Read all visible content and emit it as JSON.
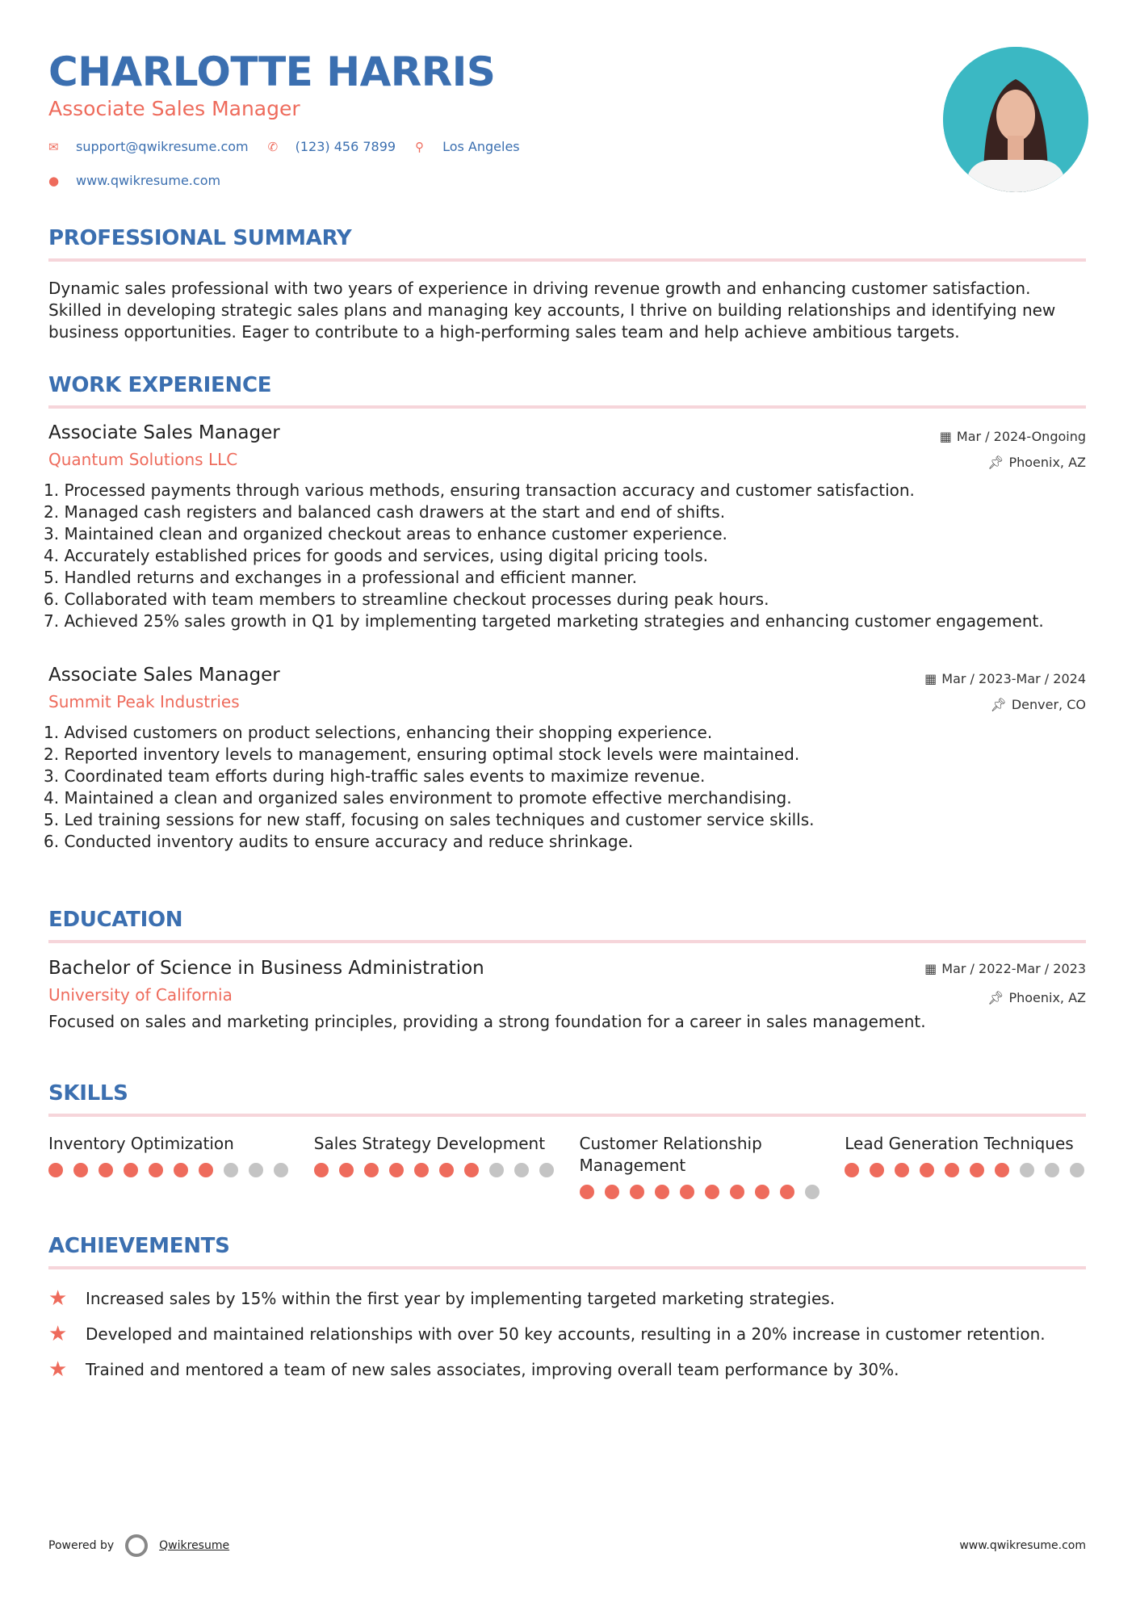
{
  "header": {
    "name": "CHARLOTTE HARRIS",
    "role": "Associate Sales Manager",
    "email": "support@qwikresume.com",
    "phone": "(123) 456 7899",
    "location": "Los Angeles",
    "website": "www.qwikresume.com"
  },
  "summary": {
    "title": "PROFESSIONAL SUMMARY",
    "text": "Dynamic sales professional with two years of experience in driving revenue growth and enhancing customer satisfaction. Skilled in developing strategic sales plans and managing key accounts, I thrive on building relationships and identifying new business opportunities. Eager to contribute to a high-performing sales team and help achieve ambitious targets."
  },
  "work": {
    "title": "WORK EXPERIENCE",
    "jobs": [
      {
        "title": "Associate Sales Manager",
        "company": "Quantum Solutions LLC",
        "dates": "Mar / 2024-Ongoing",
        "location": "Phoenix, AZ",
        "bullets": [
          "1. Processed payments through various methods, ensuring transaction accuracy and customer satisfaction.",
          "2. Managed cash registers and balanced cash drawers at the start and end of shifts.",
          "3. Maintained clean and organized checkout areas to enhance customer experience.",
          "4. Accurately established prices for goods and services, using digital pricing tools.",
          "5. Handled returns and exchanges in a professional and efficient manner.",
          "6. Collaborated with team members to streamline checkout processes during peak hours.",
          "7. Achieved 25% sales growth in Q1 by implementing targeted marketing strategies and enhancing customer engagement."
        ]
      },
      {
        "title": "Associate Sales Manager",
        "company": "Summit Peak Industries",
        "dates": "Mar / 2023-Mar / 2024",
        "location": "Denver, CO",
        "bullets": [
          "1. Advised customers on product selections, enhancing their shopping experience.",
          "2. Reported inventory levels to management, ensuring optimal stock levels were maintained.",
          "3. Coordinated team efforts during high-traffic sales events to maximize revenue.",
          "4. Maintained a clean and organized sales environment to promote effective merchandising.",
          "5. Led training sessions for new staff, focusing on sales techniques and customer service skills.",
          "6. Conducted inventory audits to ensure accuracy and reduce shrinkage."
        ]
      }
    ]
  },
  "education": {
    "title": "EDUCATION",
    "degree": "Bachelor of Science in Business Administration",
    "school": "University of California",
    "dates": "Mar / 2022-Mar / 2023",
    "location": "Phoenix, AZ",
    "text": "Focused on sales and marketing principles, providing a strong foundation for a career in sales management."
  },
  "skills": {
    "title": "SKILLS",
    "items": [
      {
        "name": "Inventory Optimization",
        "level": 7,
        "max": 10
      },
      {
        "name": "Sales Strategy Development",
        "level": 7,
        "max": 10
      },
      {
        "name": "Customer Relationship Management",
        "level": 9,
        "max": 10
      },
      {
        "name": "Lead Generation Techniques",
        "level": 7,
        "max": 10
      }
    ]
  },
  "achievements": {
    "title": "ACHIEVEMENTS",
    "items": [
      "Increased sales by 15% within the first year by implementing targeted marketing strategies.",
      "Developed and maintained relationships with over 50 key accounts, resulting in a 20% increase in customer retention.",
      "Trained and mentored a team of new sales associates, improving overall team performance by 30%."
    ]
  },
  "footer": {
    "powered": "Powered by",
    "brand": "Qwikresume",
    "site": "www.qwikresume.com"
  },
  "colors": {
    "accent": "#3b6fb0",
    "highlight": "#ee6b5c",
    "rule": "#f6d5da",
    "dot_off": "#c4c4c4"
  }
}
